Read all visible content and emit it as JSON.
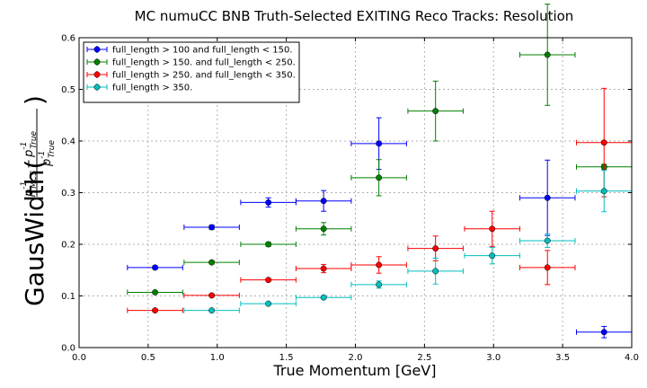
{
  "chart_data": {
    "type": "scatter",
    "title": "MC numuCC BNB Truth-Selected EXITING Reco Tracks: Resolution",
    "xlabel": "True Momentum [GeV]",
    "ylabel": {
      "prefix": "GausWidth(",
      "numerator": "p",
      "num_sup1": "-1",
      "num_sub1": "MCS",
      "minus": "−",
      "num_sup2": "-1",
      "num_sub2": "True",
      "denominator": "p",
      "den_sup": "-1",
      "den_sub": "True",
      "suffix": ")"
    },
    "xlim": [
      0.0,
      4.0
    ],
    "ylim": [
      0.0,
      0.6
    ],
    "xticks": [
      "0.0",
      "0.5",
      "1.0",
      "1.5",
      "2.0",
      "2.5",
      "3.0",
      "3.5",
      "4.0"
    ],
    "yticks": [
      "0.0",
      "0.1",
      "0.2",
      "0.3",
      "0.4",
      "0.5",
      "0.6"
    ],
    "grid": true,
    "legend_position": "top-left",
    "series": [
      {
        "name": "full_length > 100 and full_length < 150.",
        "color": "#0000ff",
        "points": [
          {
            "x": 0.55,
            "xerr": 0.2,
            "y": 0.155,
            "yerr": 0.003
          },
          {
            "x": 0.96,
            "xerr": 0.2,
            "y": 0.233,
            "yerr": 0.004
          },
          {
            "x": 1.37,
            "xerr": 0.2,
            "y": 0.281,
            "yerr": 0.009
          },
          {
            "x": 1.77,
            "xerr": 0.2,
            "y": 0.284,
            "yerr": 0.02
          },
          {
            "x": 2.17,
            "xerr": 0.2,
            "y": 0.395,
            "yerr": 0.05
          },
          {
            "x": 3.39,
            "xerr": 0.2,
            "y": 0.29,
            "yerr": 0.073
          },
          {
            "x": 3.8,
            "xerr": 0.2,
            "y": 0.03,
            "yerr": 0.011
          }
        ]
      },
      {
        "name": "full_length > 150. and full_length < 250.",
        "color": "#008000",
        "points": [
          {
            "x": 0.55,
            "xerr": 0.2,
            "y": 0.107,
            "yerr": 0.002
          },
          {
            "x": 0.96,
            "xerr": 0.2,
            "y": 0.165,
            "yerr": 0.003
          },
          {
            "x": 1.37,
            "xerr": 0.2,
            "y": 0.2,
            "yerr": 0.004
          },
          {
            "x": 1.77,
            "xerr": 0.2,
            "y": 0.23,
            "yerr": 0.012
          },
          {
            "x": 2.17,
            "xerr": 0.2,
            "y": 0.329,
            "yerr": 0.035
          },
          {
            "x": 2.58,
            "xerr": 0.2,
            "y": 0.458,
            "yerr": 0.058
          },
          {
            "x": 3.39,
            "xerr": 0.2,
            "y": 0.567,
            "yerr": 0.098
          },
          {
            "x": 3.8,
            "xerr": 0.2,
            "y": 0.35,
            "yerr": 0.005
          }
        ]
      },
      {
        "name": "full_length > 250. and full_length < 350.",
        "color": "#ff0000",
        "points": [
          {
            "x": 0.55,
            "xerr": 0.2,
            "y": 0.072,
            "yerr": 0.002
          },
          {
            "x": 0.96,
            "xerr": 0.2,
            "y": 0.101,
            "yerr": 0.002
          },
          {
            "x": 1.37,
            "xerr": 0.2,
            "y": 0.131,
            "yerr": 0.003
          },
          {
            "x": 1.77,
            "xerr": 0.2,
            "y": 0.153,
            "yerr": 0.008
          },
          {
            "x": 2.17,
            "xerr": 0.2,
            "y": 0.16,
            "yerr": 0.016
          },
          {
            "x": 2.58,
            "xerr": 0.2,
            "y": 0.192,
            "yerr": 0.024
          },
          {
            "x": 2.99,
            "xerr": 0.2,
            "y": 0.23,
            "yerr": 0.034
          },
          {
            "x": 3.39,
            "xerr": 0.2,
            "y": 0.155,
            "yerr": 0.033
          },
          {
            "x": 3.8,
            "xerr": 0.2,
            "y": 0.397,
            "yerr": 0.105
          }
        ]
      },
      {
        "name": "full_length > 350.",
        "color": "#00bfbf",
        "points": [
          {
            "x": 0.96,
            "xerr": 0.2,
            "y": 0.072,
            "yerr": 0.002
          },
          {
            "x": 1.37,
            "xerr": 0.2,
            "y": 0.085,
            "yerr": 0.002
          },
          {
            "x": 1.77,
            "xerr": 0.2,
            "y": 0.097,
            "yerr": 0.003
          },
          {
            "x": 2.17,
            "xerr": 0.2,
            "y": 0.122,
            "yerr": 0.007
          },
          {
            "x": 2.58,
            "xerr": 0.2,
            "y": 0.148,
            "yerr": 0.025
          },
          {
            "x": 2.99,
            "xerr": 0.2,
            "y": 0.178,
            "yerr": 0.016
          },
          {
            "x": 3.39,
            "xerr": 0.2,
            "y": 0.207,
            "yerr": 0.013
          },
          {
            "x": 3.8,
            "xerr": 0.2,
            "y": 0.303,
            "yerr": 0.04
          }
        ]
      }
    ]
  }
}
